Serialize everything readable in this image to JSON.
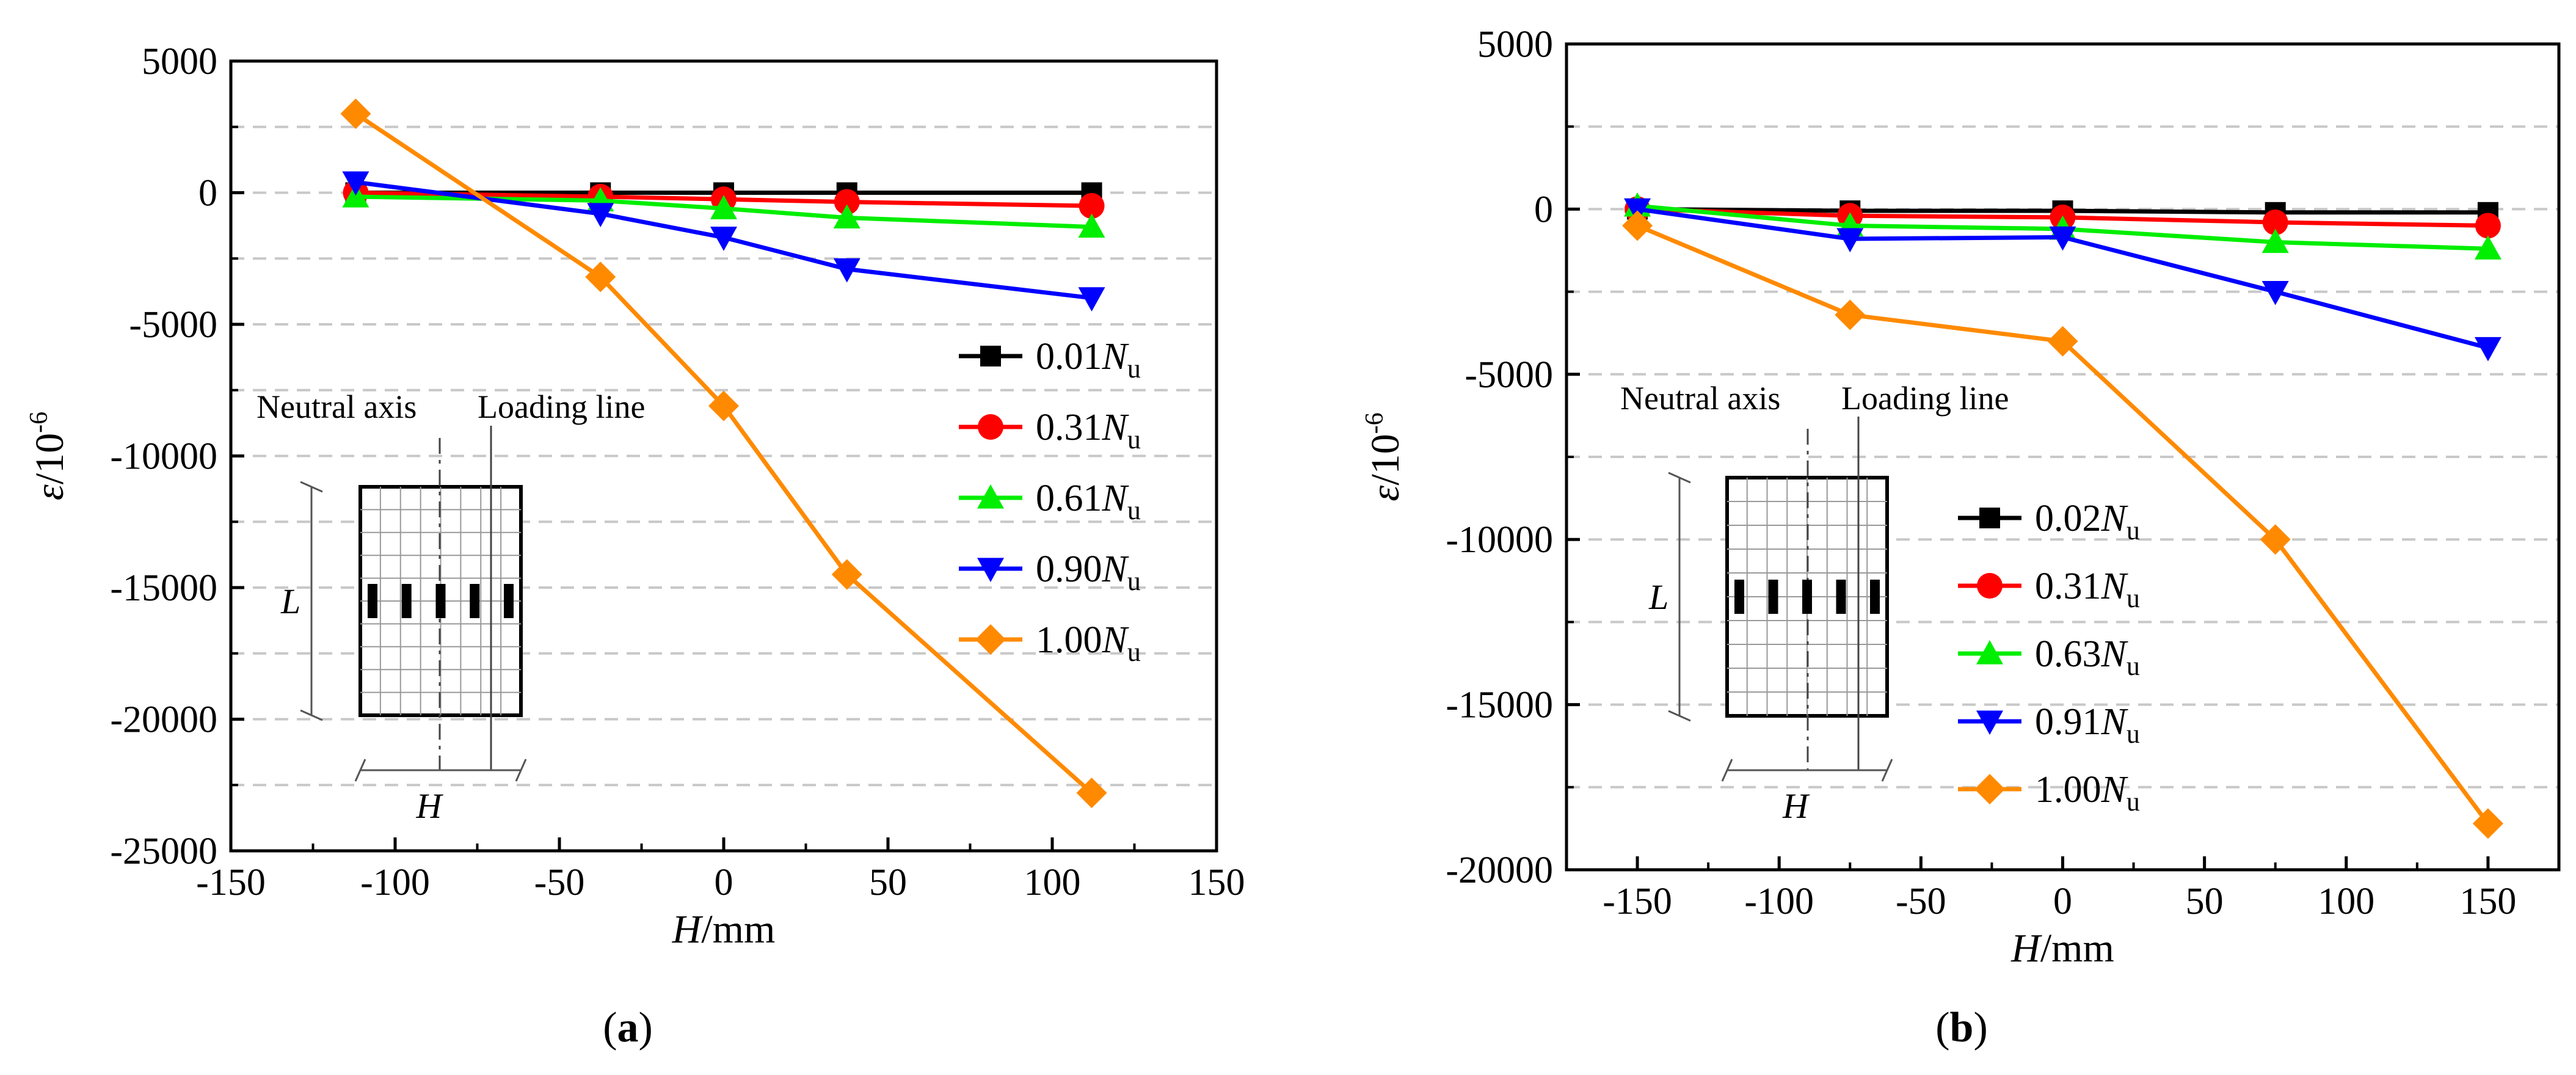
{
  "chart_data": [
    {
      "type": "line",
      "panel_label": "a",
      "xlabel_var": "H",
      "xlabel_unit": "/mm",
      "ylabel_var": "ε",
      "ylabel_unit": "/10",
      "ylabel_exp": "-6",
      "xlim": [
        -150,
        150
      ],
      "ylim": [
        -25000,
        5000
      ],
      "xticks": [
        -150,
        -100,
        -50,
        0,
        50,
        100,
        150
      ],
      "yticks": [
        5000,
        0,
        -5000,
        -10000,
        -15000,
        -20000,
        -25000
      ],
      "grid": "horizontal dashed",
      "legend_position": "right",
      "x": [
        -112,
        -37.5,
        0,
        37.5,
        112
      ],
      "series": [
        {
          "name": "0.01",
          "suffix": "N",
          "sub": "u",
          "color": "#000000",
          "marker": "square",
          "values": [
            0,
            0,
            0,
            0,
            0
          ]
        },
        {
          "name": "0.31",
          "suffix": "N",
          "sub": "u",
          "color": "#ff0000",
          "marker": "circle",
          "values": [
            0,
            -150,
            -250,
            -350,
            -500
          ]
        },
        {
          "name": "0.61",
          "suffix": "N",
          "sub": "u",
          "color": "#00ee00",
          "marker": "triangle-up",
          "values": [
            -150,
            -300,
            -600,
            -950,
            -1300
          ]
        },
        {
          "name": "0.90",
          "suffix": "N",
          "sub": "u",
          "color": "#0000ff",
          "marker": "triangle-down",
          "values": [
            400,
            -800,
            -1700,
            -2900,
            -4000
          ]
        },
        {
          "name": "1.00",
          "suffix": "N",
          "sub": "u",
          "color": "#ff8a00",
          "marker": "diamond",
          "values": [
            3000,
            -3200,
            -8100,
            -14500,
            -22800
          ]
        }
      ],
      "inset": {
        "neutral_axis": "Neutral axis",
        "loading_line": "Loading line",
        "length_symbol": "L",
        "width_symbol": "H"
      }
    },
    {
      "type": "line",
      "panel_label": "b",
      "xlabel_var": "H",
      "xlabel_unit": "/mm",
      "ylabel_var": "ε",
      "ylabel_unit": "/10",
      "ylabel_exp": "-6",
      "xlim": [
        -175,
        175
      ],
      "ylim": [
        -20000,
        5000
      ],
      "xticks": [
        -150,
        -100,
        -50,
        0,
        50,
        100,
        150
      ],
      "yticks": [
        5000,
        0,
        -5000,
        -10000,
        -15000,
        -20000
      ],
      "grid": "horizontal dashed",
      "legend_position": "right",
      "x": [
        -150,
        -75,
        0,
        75,
        150
      ],
      "series": [
        {
          "name": "0.02",
          "suffix": "N",
          "sub": "u",
          "color": "#000000",
          "marker": "square",
          "values": [
            0,
            -50,
            -50,
            -100,
            -100
          ]
        },
        {
          "name": "0.31",
          "suffix": "N",
          "sub": "u",
          "color": "#ff0000",
          "marker": "circle",
          "values": [
            0,
            -200,
            -250,
            -400,
            -500
          ]
        },
        {
          "name": "0.63",
          "suffix": "N",
          "sub": "u",
          "color": "#00ee00",
          "marker": "triangle-up",
          "values": [
            100,
            -500,
            -600,
            -1000,
            -1200
          ]
        },
        {
          "name": "0.91",
          "suffix": "N",
          "sub": "u",
          "color": "#0000ff",
          "marker": "triangle-down",
          "values": [
            0,
            -900,
            -850,
            -2500,
            -4200
          ]
        },
        {
          "name": "1.00",
          "suffix": "N",
          "sub": "u",
          "color": "#ff8a00",
          "marker": "diamond",
          "values": [
            -500,
            -3200,
            -4000,
            -10000,
            -18600
          ]
        }
      ],
      "inset": {
        "neutral_axis": "Neutral axis",
        "loading_line": "Loading line",
        "length_symbol": "L",
        "width_symbol": "H"
      }
    }
  ]
}
